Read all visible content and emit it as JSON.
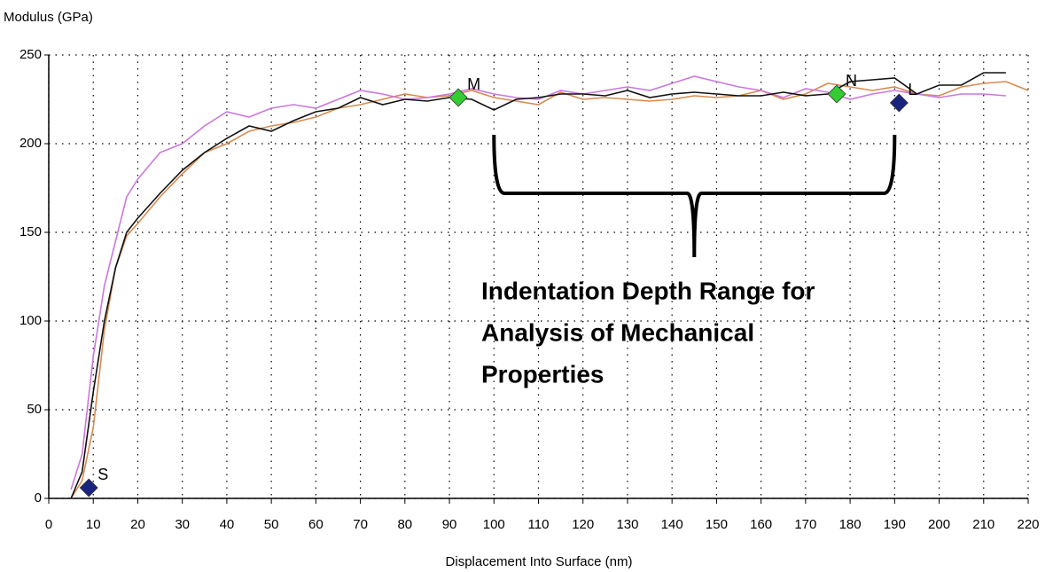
{
  "chart_data": {
    "type": "line",
    "y_label": "Modulus (GPa)",
    "x_label": "Displacement Into Surface (nm)",
    "x": [
      5,
      7.5,
      10,
      12.5,
      15,
      17.5,
      20,
      25,
      30,
      35,
      40,
      45,
      50,
      55,
      60,
      65,
      70,
      75,
      80,
      85,
      90,
      95,
      100,
      105,
      110,
      115,
      120,
      125,
      130,
      135,
      140,
      145,
      150,
      155,
      160,
      165,
      170,
      175,
      180,
      185,
      190,
      195,
      200,
      205,
      210,
      215,
      220
    ],
    "series": [
      {
        "color": "#d88a50",
        "values": [
          0,
          10,
          40,
          95,
          130,
          148,
          155,
          170,
          183,
          195,
          200,
          207,
          210,
          212,
          215,
          220,
          222,
          225,
          228,
          226,
          227,
          230,
          226,
          224,
          222,
          229,
          225,
          226,
          225,
          224,
          225,
          227,
          226,
          227,
          230,
          225,
          228,
          234,
          232,
          230,
          232,
          228,
          227,
          232,
          234,
          235,
          230
        ]
      },
      {
        "color": "#cc77dd",
        "values": [
          5,
          25,
          80,
          120,
          145,
          170,
          180,
          195,
          200,
          210,
          218,
          215,
          220,
          222,
          220,
          225,
          230,
          228,
          225,
          226,
          228,
          231,
          228,
          226,
          225,
          230,
          228,
          230,
          232,
          230,
          234,
          238,
          235,
          232,
          230,
          226,
          231,
          229,
          225,
          228,
          230,
          228,
          226,
          228,
          228,
          227,
          null
        ]
      },
      {
        "color": "#111111",
        "values": [
          0,
          15,
          60,
          100,
          130,
          150,
          158,
          172,
          185,
          195,
          203,
          210,
          207,
          213,
          218,
          220,
          226,
          222,
          225,
          224,
          226,
          225,
          219,
          225,
          226,
          228,
          228,
          227,
          230,
          226,
          228,
          229,
          228,
          227,
          227,
          229,
          227,
          228,
          235,
          236,
          237,
          228,
          233,
          233,
          240,
          240,
          null
        ]
      }
    ],
    "markers": [
      {
        "label": "S",
        "x": 9,
        "y": 6,
        "color": "#1a237e"
      },
      {
        "label": "M",
        "x": 92,
        "y": 226,
        "color": "#33cc33"
      },
      {
        "label": "N",
        "x": 177,
        "y": 228,
        "color": "#33cc33"
      },
      {
        "label": "L",
        "x": 191,
        "y": 223,
        "color": "#1a237e"
      }
    ],
    "annotation": {
      "lines": [
        "Indentation Depth Range for",
        "Analysis of Mechanical",
        "Properties"
      ],
      "range": [
        100,
        190
      ]
    },
    "xlim": [
      0,
      220
    ],
    "ylim": [
      0,
      250
    ],
    "xticks": [
      0,
      10,
      20,
      30,
      40,
      50,
      60,
      70,
      80,
      90,
      100,
      110,
      120,
      130,
      140,
      150,
      160,
      170,
      180,
      190,
      200,
      210,
      220
    ],
    "yticks": [
      0,
      50,
      100,
      150,
      200,
      250
    ],
    "grid": true
  }
}
